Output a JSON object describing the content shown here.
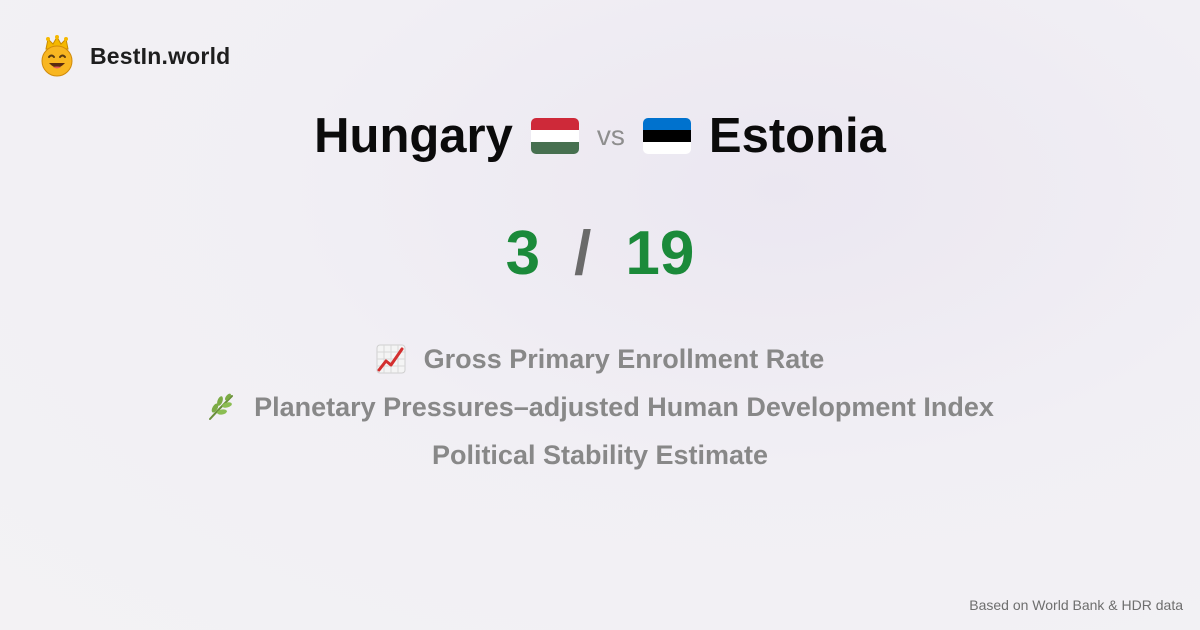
{
  "brand": {
    "name": "BestIn.world"
  },
  "comparison": {
    "left_country": "Hungary",
    "vs_label": "vs",
    "right_country": "Estonia",
    "left_score": "3",
    "separator": "/",
    "right_score": "19"
  },
  "metrics": [
    {
      "icon": "chart-increasing-icon",
      "label": "Gross Primary Enrollment Rate"
    },
    {
      "icon": "herb-icon",
      "label": "Planetary Pressures–adjusted Human Development Index"
    },
    {
      "icon": "",
      "label": "Political Stability Estimate"
    }
  ],
  "footer": {
    "source": "Based on World Bank & HDR data"
  },
  "colors": {
    "score": "#1b8a3a",
    "hungary_flag": [
      "#ce2939",
      "#ffffff",
      "#477050"
    ],
    "estonia_flag": [
      "#0072ce",
      "#000000",
      "#ffffff"
    ]
  }
}
